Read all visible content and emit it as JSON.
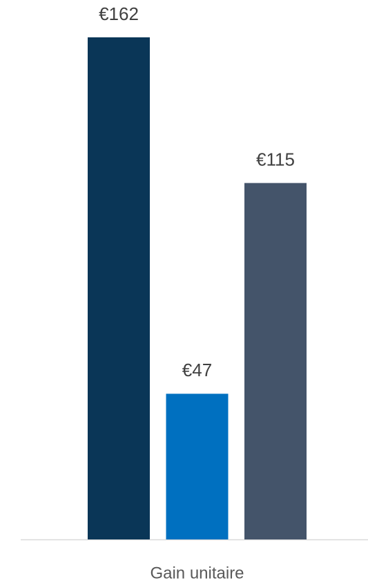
{
  "chart_data": {
    "type": "bar",
    "categories": [
      "Gain unitaire"
    ],
    "series": [
      {
        "color": "#0a3657",
        "values": [
          162
        ],
        "value_labels": [
          "€162"
        ]
      },
      {
        "color": "#0070c0",
        "values": [
          47
        ],
        "value_labels": [
          "€47"
        ]
      },
      {
        "color": "#44546a",
        "values": [
          115
        ],
        "value_labels": [
          "€115"
        ]
      }
    ]
  }
}
